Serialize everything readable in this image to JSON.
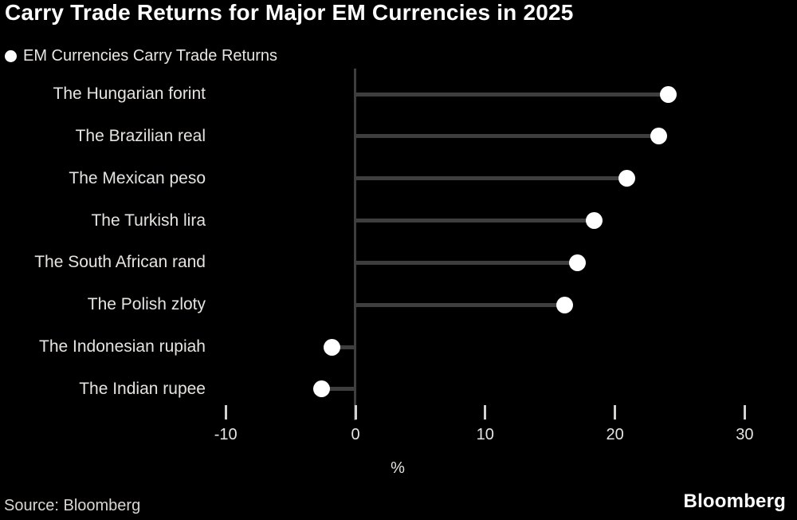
{
  "header": {
    "title": "Carry Trade Returns for Major EM Currencies in 2025"
  },
  "legend": {
    "marker": "circle-icon",
    "marker_color": "#ffffff",
    "label": "EM Currencies Carry Trade Returns"
  },
  "chart_data": {
    "type": "scatter",
    "variant": "horizontal-lollipop",
    "title": "Carry Trade Returns for Major EM Currencies in 2025",
    "series_name": "EM Currencies Carry Trade Returns",
    "categories": [
      "The Hungarian forint",
      "The Brazilian real",
      "The Mexican peso",
      "The Turkish lira",
      "The South African rand",
      "The Polish zloty",
      "The Indonesian rupiah",
      "The Indian rupee"
    ],
    "values": [
      24.1,
      23.4,
      20.9,
      18.4,
      17.1,
      16.1,
      -1.8,
      -2.6
    ],
    "xlabel": "%",
    "ylabel": "",
    "x_ticks": [
      -10,
      0,
      10,
      20,
      30
    ],
    "xlim": [
      -11.5,
      33.5
    ],
    "grid": false,
    "legend_position": "top-left",
    "baseline_value": 0
  },
  "colors": {
    "background": "#000000",
    "title": "#ffffff",
    "category_label": "#e6e4e0",
    "stem": "#3e3e3e",
    "axis": "#3e3e3e",
    "tick_mark": "#d4d2cf",
    "dot": "#ffffff"
  },
  "footer": {
    "source": "Source: Bloomberg",
    "logo": "Bloomberg"
  }
}
